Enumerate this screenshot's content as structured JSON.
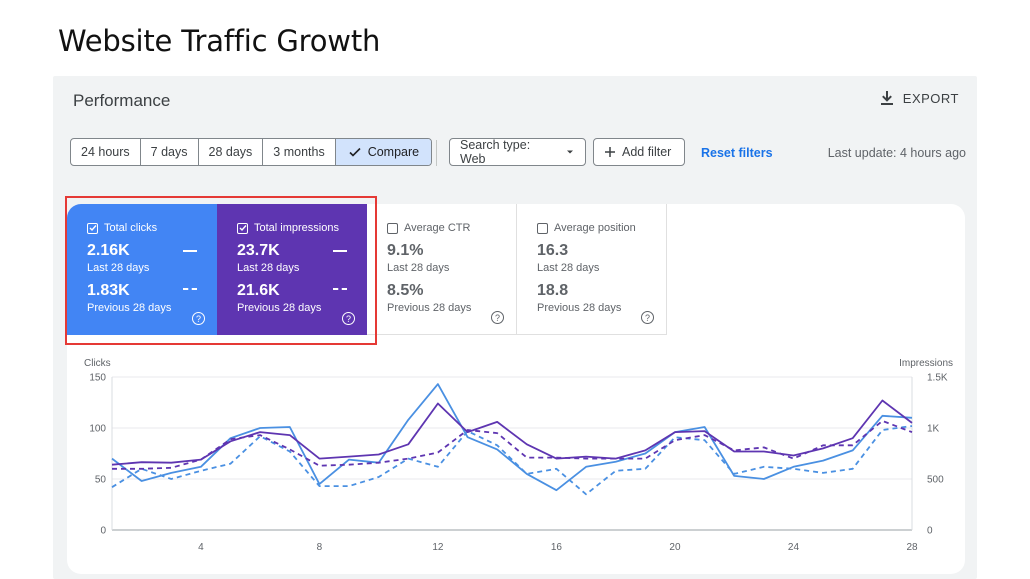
{
  "page_heading": "Website Traffic Growth",
  "header": {
    "title": "Performance",
    "export_label": "EXPORT"
  },
  "filters": {
    "ranges": [
      "24 hours",
      "7 days",
      "28 days",
      "3 months"
    ],
    "compare_label": "Compare",
    "search_type_label": "Search type: Web",
    "add_filter_label": "Add filter",
    "reset_label": "Reset filters",
    "last_update": "Last update: 4 hours ago"
  },
  "metrics": [
    {
      "label": "Total clicks",
      "checked": true,
      "current": "2.16K",
      "current_period": "Last 28 days",
      "previous": "1.83K",
      "previous_period": "Previous 28 days",
      "color": "#4285f4"
    },
    {
      "label": "Total impressions",
      "checked": true,
      "current": "23.7K",
      "current_period": "Last 28 days",
      "previous": "21.6K",
      "previous_period": "Previous 28 days",
      "color": "#5e35b1"
    },
    {
      "label": "Average CTR",
      "checked": false,
      "current": "9.1%",
      "current_period": "Last 28 days",
      "previous": "8.5%",
      "previous_period": "Previous 28 days"
    },
    {
      "label": "Average position",
      "checked": false,
      "current": "16.3",
      "current_period": "Last 28 days",
      "previous": "18.8",
      "previous_period": "Previous 28 days"
    }
  ],
  "chart_data": {
    "type": "line",
    "ylabel_left": "Clicks",
    "ylabel_right": "Impressions",
    "ylim_left": [
      0,
      150
    ],
    "ylim_right": [
      0,
      1500
    ],
    "yticks_left": [
      "150",
      "100",
      "50",
      "0"
    ],
    "yticks_right": [
      "1.5K",
      "1K",
      "500",
      "0"
    ],
    "xticks": [
      "4",
      "8",
      "12",
      "16",
      "20",
      "24",
      "28"
    ],
    "x": [
      1,
      2,
      3,
      4,
      5,
      6,
      7,
      8,
      9,
      10,
      11,
      12,
      13,
      14,
      15,
      16,
      17,
      18,
      19,
      20,
      21,
      22,
      23,
      24,
      25,
      26,
      27,
      28
    ],
    "series": [
      {
        "name": "Total clicks",
        "axis": "left",
        "style": "solid",
        "color": "#4a90e2",
        "values": [
          70,
          48,
          56,
          62,
          90,
          100,
          101,
          45,
          69,
          66,
          108,
          143,
          91,
          79,
          55,
          39,
          62,
          67,
          75,
          96,
          101,
          53,
          50,
          62,
          68,
          78,
          112,
          110
        ]
      },
      {
        "name": "Total clicks",
        "axis": "left",
        "style": "dashed",
        "color": "#4a90e2",
        "values": [
          42,
          60,
          50,
          58,
          65,
          92,
          77,
          43,
          43,
          52,
          70,
          62,
          97,
          83,
          55,
          60,
          35,
          58,
          60,
          91,
          88,
          55,
          62,
          60,
          56,
          60,
          98,
          102
        ]
      },
      {
        "name": "Total impressions",
        "axis": "right",
        "style": "solid",
        "color": "#5e35b1",
        "values": [
          640,
          665,
          660,
          690,
          870,
          960,
          930,
          700,
          720,
          740,
          840,
          1240,
          960,
          1060,
          840,
          700,
          720,
          700,
          780,
          960,
          970,
          770,
          770,
          730,
          800,
          900,
          1270,
          1050
        ]
      },
      {
        "name": "Total impressions",
        "axis": "right",
        "style": "dashed",
        "color": "#5e35b1",
        "values": [
          600,
          600,
          610,
          690,
          890,
          930,
          790,
          630,
          640,
          660,
          700,
          760,
          980,
          950,
          710,
          710,
          700,
          700,
          700,
          880,
          930,
          780,
          810,
          700,
          830,
          830,
          1070,
          960
        ]
      }
    ]
  }
}
